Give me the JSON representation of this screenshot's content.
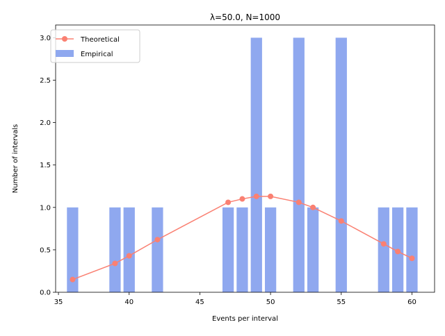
{
  "chart_data": {
    "type": "bar",
    "title": "λ=50.0, N=1000",
    "xlabel": "Events per interval",
    "ylabel": "Number of intervals",
    "xlim": [
      34.8,
      61.6
    ],
    "ylim": [
      0,
      3.15
    ],
    "x_ticks": [
      35,
      40,
      45,
      50,
      55,
      60
    ],
    "y_ticks": [
      0.0,
      0.5,
      1.0,
      1.5,
      2.0,
      2.5,
      3.0
    ],
    "x_tick_labels": [
      "35",
      "40",
      "45",
      "50",
      "55",
      "60"
    ],
    "y_tick_labels": [
      "0.0",
      "0.5",
      "1.0",
      "1.5",
      "2.0",
      "2.5",
      "3.0"
    ],
    "grid": false,
    "legend_position": "upper-left",
    "series": [
      {
        "name": "Theoretical",
        "kind": "line",
        "color": "#fa8072",
        "x": [
          36,
          39,
          40,
          42,
          47,
          48,
          49,
          50,
          52,
          53,
          55,
          58,
          59,
          60
        ],
        "y": [
          0.15,
          0.34,
          0.43,
          0.62,
          1.06,
          1.1,
          1.13,
          1.13,
          1.06,
          1.0,
          0.84,
          0.57,
          0.48,
          0.4
        ]
      },
      {
        "name": "Empirical",
        "kind": "bar",
        "color": "#8fa8ef",
        "x": [
          36,
          39,
          40,
          42,
          47,
          48,
          49,
          50,
          52,
          53,
          55,
          58,
          59,
          60
        ],
        "y": [
          1,
          1,
          1,
          1,
          1,
          1,
          3,
          1,
          3,
          1,
          3,
          1,
          1,
          1
        ]
      }
    ]
  }
}
